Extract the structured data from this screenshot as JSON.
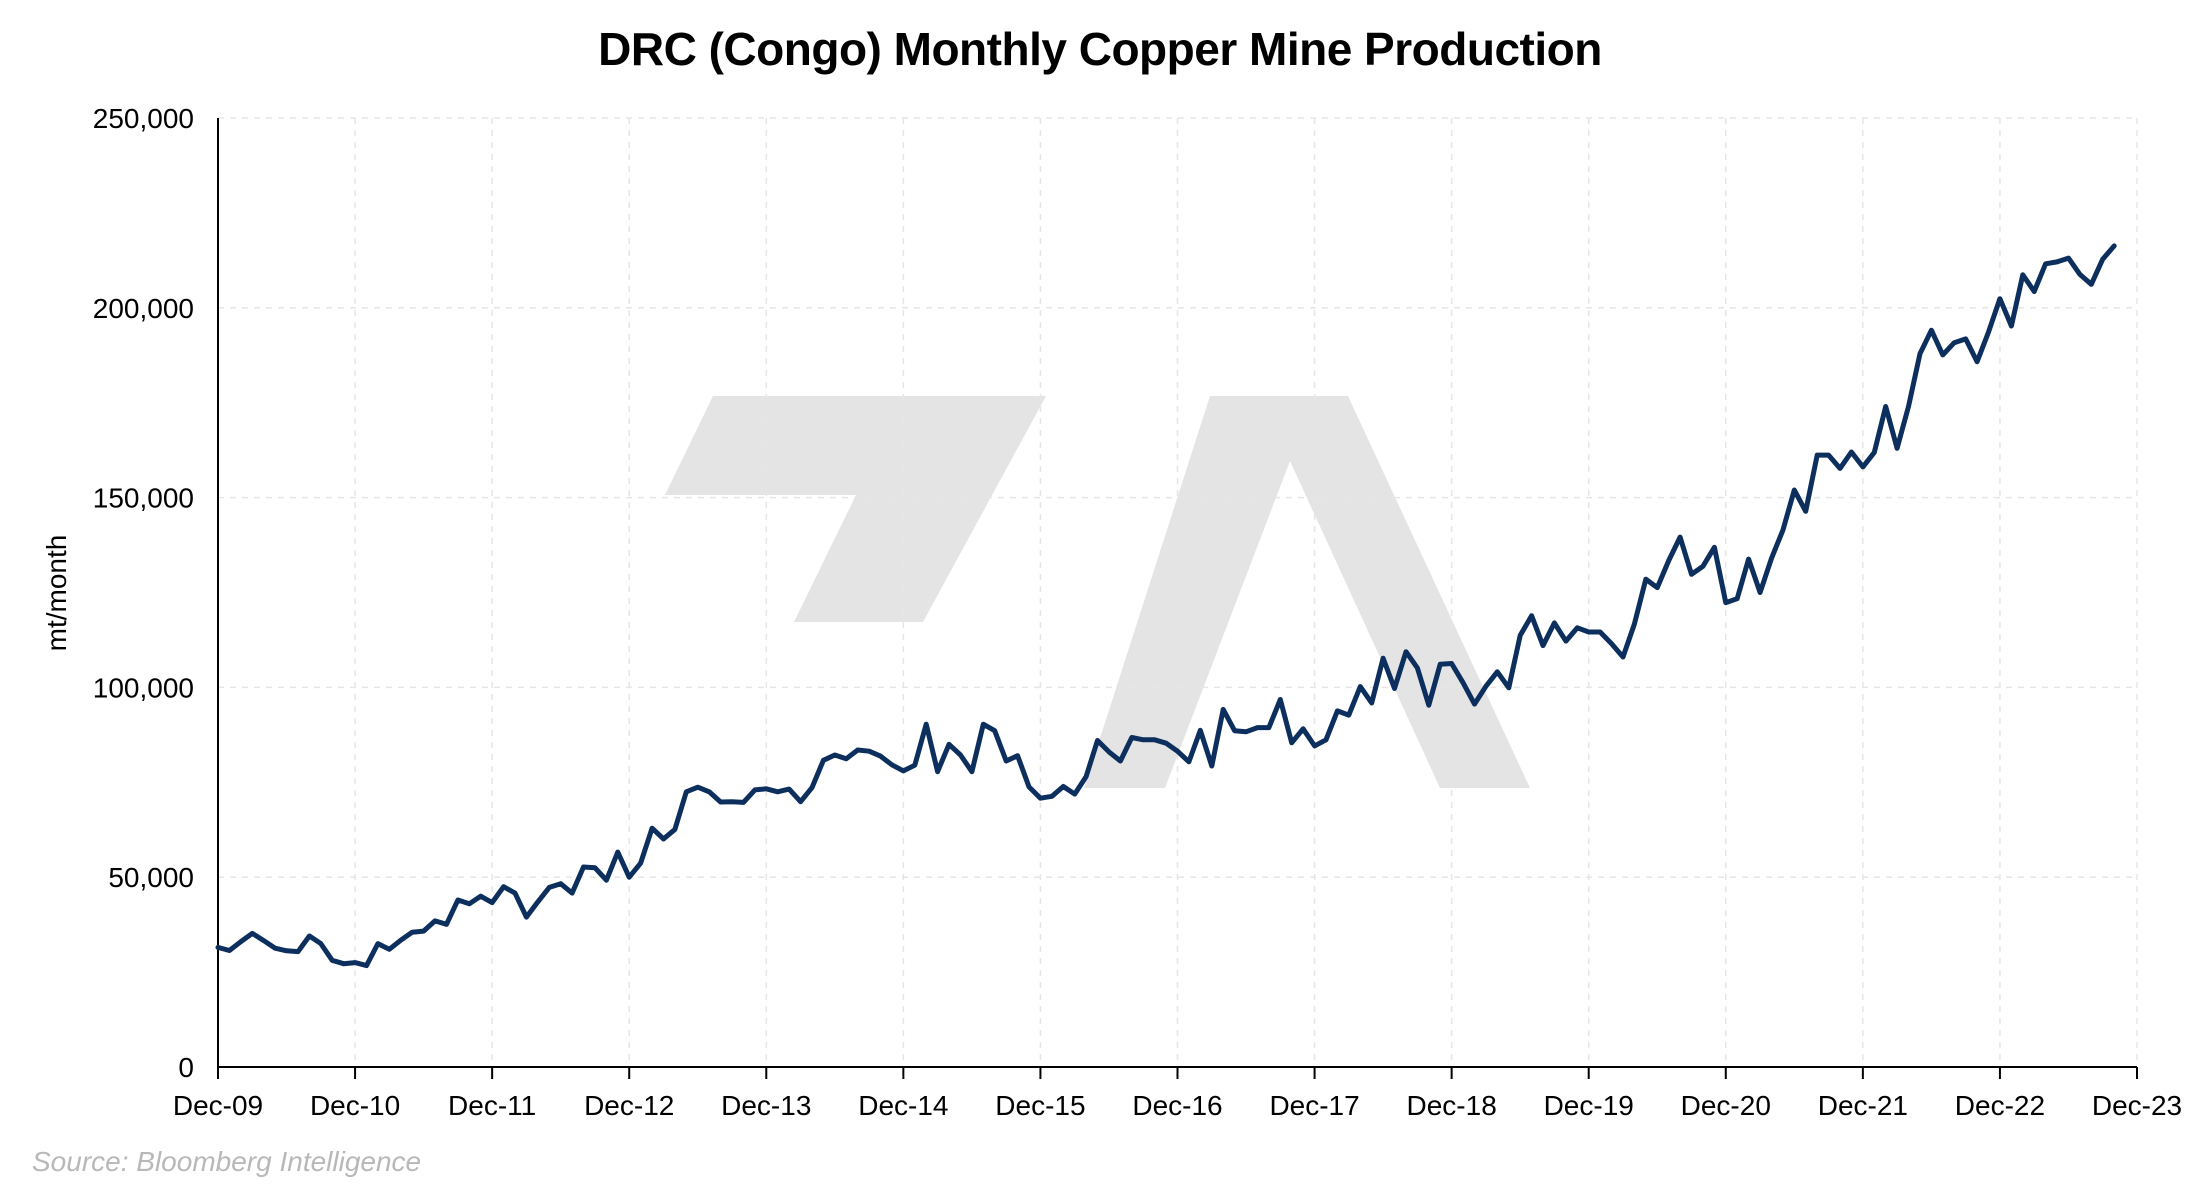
{
  "chart_data": {
    "type": "line",
    "title": "DRC (Congo) Monthly Copper Mine Production",
    "xlabel": "",
    "ylabel": "mt/month",
    "source": "Source: Bloomberg Intelligence",
    "ylim": [
      0,
      250000
    ],
    "yticks": [
      0,
      50000,
      100000,
      150000,
      200000,
      250000
    ],
    "ytick_labels": [
      "0",
      "50,000",
      "100,000",
      "150,000",
      "200,000",
      "250,000"
    ],
    "xlim": [
      "2009-12",
      "2023-12"
    ],
    "xtick_labels": [
      "Dec-09",
      "Dec-10",
      "Dec-11",
      "Dec-12",
      "Dec-13",
      "Dec-14",
      "Dec-15",
      "Dec-16",
      "Dec-17",
      "Dec-18",
      "Dec-19",
      "Dec-20",
      "Dec-21",
      "Dec-22",
      "Dec-23"
    ],
    "grid": true,
    "line_color": "#0d2f5e",
    "series": [
      {
        "x": [
          "2009-12",
          "2010-01",
          "2010-02",
          "2010-03",
          "2010-04",
          "2010-05",
          "2010-06",
          "2010-07",
          "2010-08",
          "2010-09",
          "2010-10",
          "2010-11",
          "2010-12",
          "2011-01",
          "2011-02",
          "2011-03",
          "2011-04",
          "2011-05",
          "2011-06",
          "2011-07",
          "2011-08",
          "2011-09",
          "2011-10",
          "2011-11",
          "2011-12",
          "2012-01",
          "2012-02",
          "2012-03",
          "2012-04",
          "2012-05",
          "2012-06",
          "2012-07",
          "2012-08",
          "2012-09",
          "2012-10",
          "2012-11",
          "2012-12",
          "2013-01",
          "2013-02",
          "2013-03",
          "2013-04",
          "2013-05",
          "2013-06",
          "2013-07",
          "2013-08",
          "2013-09",
          "2013-10",
          "2013-11",
          "2013-12",
          "2014-01",
          "2014-02",
          "2014-03",
          "2014-04",
          "2014-05",
          "2014-06",
          "2014-07",
          "2014-08",
          "2014-09",
          "2014-10",
          "2014-11",
          "2014-12",
          "2015-01",
          "2015-02",
          "2015-03",
          "2015-04",
          "2015-05",
          "2015-06",
          "2015-07",
          "2015-08",
          "2015-09",
          "2015-10",
          "2015-11",
          "2015-12",
          "2016-01",
          "2016-02",
          "2016-03",
          "2016-04",
          "2016-05",
          "2016-06",
          "2016-07",
          "2016-08",
          "2016-09",
          "2016-10",
          "2016-11",
          "2016-12",
          "2017-01",
          "2017-02",
          "2017-03",
          "2017-04",
          "2017-05",
          "2017-06",
          "2017-07",
          "2017-08",
          "2017-09",
          "2017-10",
          "2017-11",
          "2017-12",
          "2018-01",
          "2018-02",
          "2018-03",
          "2018-04",
          "2018-05",
          "2018-06",
          "2018-07",
          "2018-08",
          "2018-09",
          "2018-10",
          "2018-11",
          "2018-12",
          "2019-01",
          "2019-02",
          "2019-03",
          "2019-04",
          "2019-05",
          "2019-06",
          "2019-07",
          "2019-08",
          "2019-09",
          "2019-10",
          "2019-11",
          "2019-12",
          "2020-01",
          "2020-02",
          "2020-03",
          "2020-04",
          "2020-05",
          "2020-06",
          "2020-07",
          "2020-08",
          "2020-09",
          "2020-10",
          "2020-11",
          "2020-12",
          "2021-01",
          "2021-02",
          "2021-03",
          "2021-04",
          "2021-05",
          "2021-06",
          "2021-07",
          "2021-08",
          "2021-09",
          "2021-10",
          "2021-11",
          "2021-12",
          "2022-01",
          "2022-02",
          "2022-03",
          "2022-04",
          "2022-05",
          "2022-06",
          "2022-07",
          "2022-08",
          "2022-09",
          "2022-10",
          "2022-11",
          "2022-12",
          "2023-01",
          "2023-02",
          "2023-03",
          "2023-04",
          "2023-05",
          "2023-06",
          "2023-07",
          "2023-08",
          "2023-09",
          "2023-10"
        ],
        "values": [
          31500,
          30700,
          33000,
          35200,
          33300,
          31300,
          30600,
          30400,
          34500,
          32500,
          28100,
          27200,
          27500,
          26700,
          32500,
          31000,
          33400,
          35500,
          35800,
          38500,
          37600,
          44000,
          43000,
          45000,
          43300,
          47500,
          45800,
          39500,
          43500,
          47300,
          48300,
          45800,
          52700,
          52500,
          49200,
          56600,
          50000,
          53700,
          62900,
          60100,
          62600,
          72500,
          73700,
          72500,
          69800,
          69900,
          69700,
          73000,
          73300,
          72500,
          73200,
          69900,
          73600,
          80800,
          82200,
          81200,
          83500,
          83200,
          81900,
          79600,
          78000,
          79500,
          90300,
          77800,
          85000,
          82200,
          77800,
          90300,
          88600,
          80600,
          82000,
          73800,
          70800,
          71300,
          73900,
          71900,
          76500,
          86000,
          83000,
          80600,
          86800,
          86200,
          86200,
          85300,
          83200,
          80400,
          88700,
          79300,
          94200,
          88600,
          88300,
          89400,
          89400,
          96800,
          85400,
          89100,
          84600,
          86200,
          93800,
          92700,
          100200,
          95900,
          107700,
          99700,
          109400,
          105100,
          95300,
          106100,
          106300,
          101200,
          95600,
          100300,
          104100,
          99900,
          113700,
          118900,
          111000,
          117000,
          112200,
          115700,
          114600,
          114600,
          111500,
          108000,
          116700,
          128500,
          126300,
          133400,
          139600,
          129800,
          131900,
          136900,
          122300,
          123400,
          133800,
          125000,
          134000,
          141400,
          152000,
          146400,
          161200,
          161200,
          157700,
          162000,
          158100,
          161900,
          174000,
          163000,
          174000,
          187900,
          194100,
          187600,
          190800,
          191800,
          185800,
          193600,
          202400,
          195200,
          208700,
          204300,
          211600,
          212100,
          213100,
          208800,
          206200,
          212800,
          216300
        ]
      }
    ]
  }
}
